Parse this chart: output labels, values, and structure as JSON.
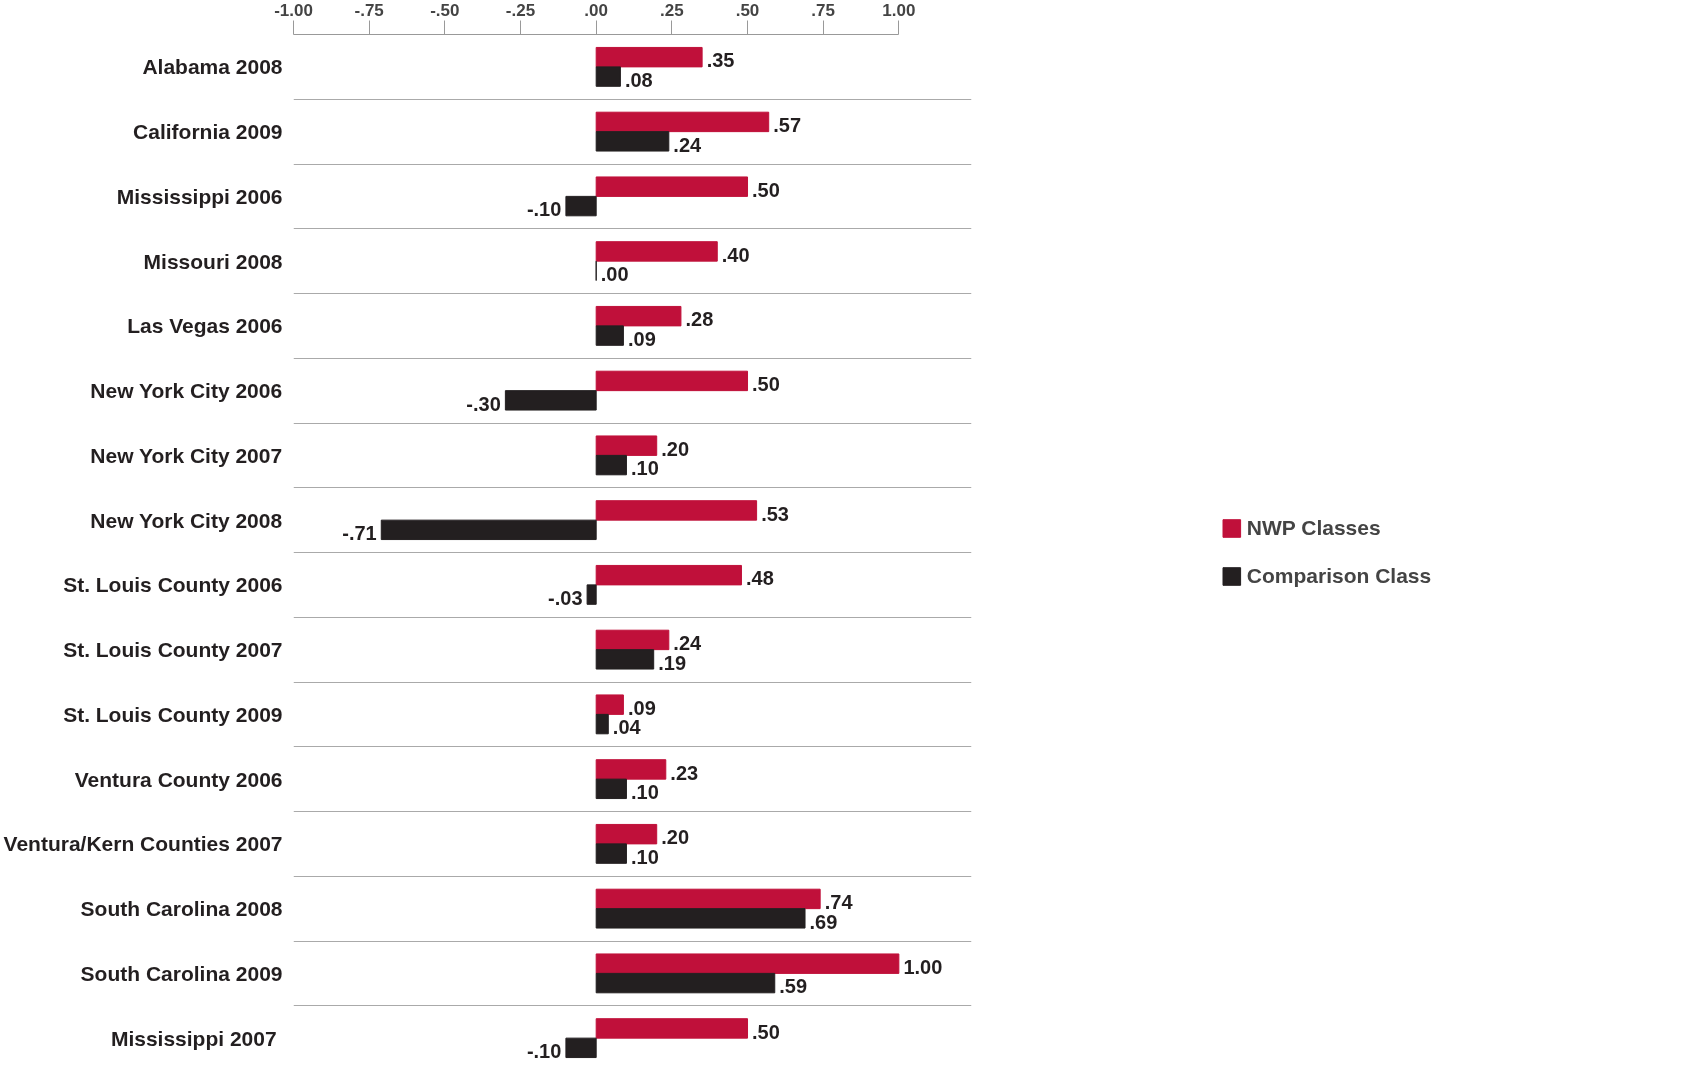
{
  "chart_data": {
    "type": "bar",
    "orientation": "horizontal",
    "categories": [
      "Alabama 2008",
      "California 2009",
      "Mississippi 2006",
      "Missouri 2008",
      "Las Vegas 2006",
      "New York City 2006",
      "New York City 2007",
      "New York City 2008",
      "St. Louis County 2006",
      "St. Louis County 2007",
      "St. Louis County 2009",
      "Ventura County 2006",
      "Ventura/Kern Counties 2007",
      "South Carolina 2008",
      "South Carolina 2009",
      "Mississippi  2007"
    ],
    "series": [
      {
        "name": "NWP Classes",
        "color": "#c0103a",
        "values": [
          0.35,
          0.57,
          0.5,
          0.4,
          0.28,
          0.5,
          0.2,
          0.53,
          0.48,
          0.24,
          0.09,
          0.23,
          0.2,
          0.74,
          1.0,
          0.5
        ],
        "value_labels": [
          ".35",
          ".57",
          ".50",
          ".40",
          ".28",
          ".50",
          ".20",
          ".53",
          ".48",
          ".24",
          ".09",
          ".23",
          ".20",
          ".74",
          "1.00",
          ".50"
        ]
      },
      {
        "name": "Comparison Class",
        "color": "#231f20",
        "values": [
          0.08,
          0.24,
          -0.1,
          0.0,
          0.09,
          -0.3,
          0.1,
          -0.71,
          -0.03,
          0.19,
          0.04,
          0.1,
          0.1,
          0.69,
          0.59,
          -0.1
        ],
        "value_labels": [
          ".08",
          ".24",
          "-.10",
          ".00",
          ".09",
          "-.30",
          ".10",
          "-.71",
          "-.03",
          ".19",
          ".04",
          ".10",
          ".10",
          ".69",
          ".59",
          "-.10"
        ]
      }
    ],
    "xlim": [
      -1,
      1
    ],
    "xticks": [
      {
        "value": -1,
        "label": "-1.00"
      },
      {
        "value": -0.75,
        "label": "-.75"
      },
      {
        "value": -0.5,
        "label": "-.50"
      },
      {
        "value": -0.25,
        "label": "-.25"
      },
      {
        "value": 0,
        "label": ".00"
      },
      {
        "value": 0.25,
        "label": ".25"
      },
      {
        "value": 0.5,
        "label": ".50"
      },
      {
        "value": 0.75,
        "label": ".75"
      },
      {
        "value": 1,
        "label": "1.00"
      }
    ],
    "grid": "y",
    "legend": "right"
  }
}
